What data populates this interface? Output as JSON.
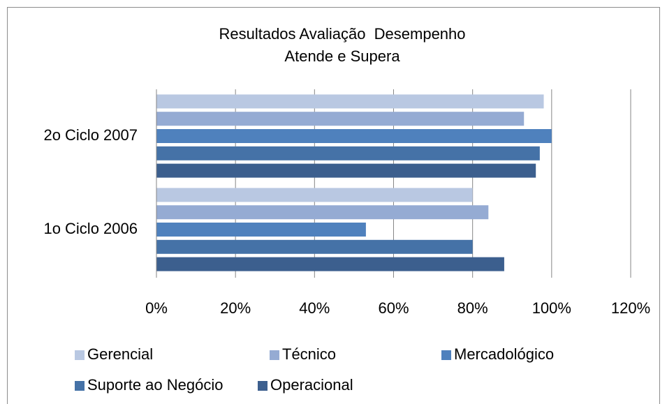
{
  "chart_data": {
    "type": "hbar",
    "title": "Resultados Avaliação  Desempenho",
    "subtitle": "Atende e Supera",
    "categories": [
      "2o Ciclo 2007",
      "1o Ciclo 2006"
    ],
    "series": [
      {
        "name": "Gerencial",
        "color": "#b9c8e2",
        "values": [
          98,
          80
        ]
      },
      {
        "name": "Técnico",
        "color": "#95abd3",
        "values": [
          93,
          84
        ]
      },
      {
        "name": "Mercadológico",
        "color": "#4f81bd",
        "values": [
          100,
          53
        ]
      },
      {
        "name": "Suporte ao Negócio",
        "color": "#4572a7",
        "values": [
          97,
          80
        ]
      },
      {
        "name": "Operacional",
        "color": "#3c5f8e",
        "values": [
          96,
          88
        ]
      }
    ],
    "xlim": [
      0,
      120
    ],
    "xticks": [
      {
        "value": 0,
        "label": "0%"
      },
      {
        "value": 20,
        "label": "20%"
      },
      {
        "value": 40,
        "label": "40%"
      },
      {
        "value": 60,
        "label": "60%"
      },
      {
        "value": 80,
        "label": "80%"
      },
      {
        "value": 100,
        "label": "100%"
      },
      {
        "value": 120,
        "label": "120%"
      }
    ],
    "grid": true,
    "legend": "bottom"
  }
}
